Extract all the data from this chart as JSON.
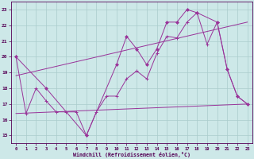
{
  "xlabel": "Windchill (Refroidissement éolien,°C)",
  "xlim": [
    -0.5,
    23.5
  ],
  "ylim": [
    14.5,
    23.5
  ],
  "yticks": [
    15,
    16,
    17,
    18,
    19,
    20,
    21,
    22,
    23
  ],
  "xticks": [
    0,
    1,
    2,
    3,
    4,
    5,
    6,
    7,
    8,
    9,
    10,
    11,
    12,
    13,
    14,
    15,
    16,
    17,
    18,
    19,
    20,
    21,
    22,
    23
  ],
  "bg_color": "#cde8e8",
  "line_color": "#993399",
  "grid_color": "#aacccc",
  "line1_x": [
    0,
    1,
    2,
    3,
    4,
    5,
    6,
    7,
    8,
    9,
    10,
    11,
    12,
    13,
    14,
    15,
    16,
    17,
    18,
    19,
    20,
    21,
    22,
    23
  ],
  "line1_y": [
    20.0,
    16.4,
    18.0,
    17.2,
    16.5,
    16.5,
    16.5,
    15.0,
    16.5,
    17.5,
    17.5,
    18.6,
    19.1,
    18.6,
    20.2,
    21.3,
    21.2,
    22.2,
    22.8,
    20.8,
    22.2,
    19.2,
    17.5,
    17.0
  ],
  "line2_x": [
    0,
    3,
    7,
    10,
    11,
    12,
    13,
    14,
    15,
    16,
    17,
    18,
    20,
    21,
    22,
    23
  ],
  "line2_y": [
    20.0,
    18.0,
    15.0,
    19.5,
    21.3,
    20.5,
    19.5,
    20.5,
    22.2,
    22.2,
    23.0,
    22.8,
    22.2,
    19.2,
    17.5,
    17.0
  ],
  "line3_x": [
    0,
    23
  ],
  "line3_y": [
    16.4,
    17.0
  ],
  "line4_x": [
    0,
    23
  ],
  "line4_y": [
    18.8,
    22.2
  ]
}
